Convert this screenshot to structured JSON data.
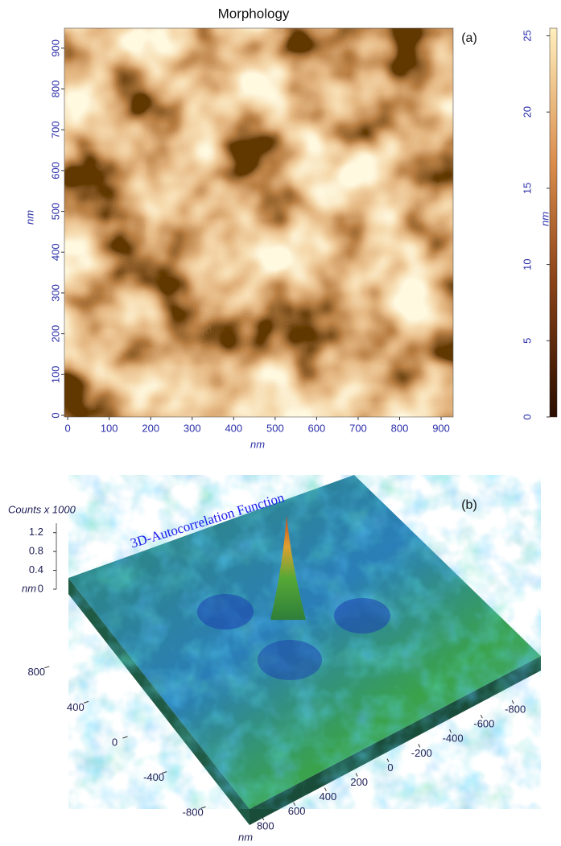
{
  "chart_data": [
    {
      "type": "heatmap",
      "title": "Morphology",
      "panel_label": "(a)",
      "x_label": "nm",
      "y_label": "nm",
      "xlim": [
        -8,
        929
      ],
      "ylim": [
        -4,
        949
      ],
      "xticks": [
        0,
        100,
        200,
        300,
        400,
        500,
        600,
        700,
        800,
        900
      ],
      "yticks": [
        0,
        100,
        200,
        300,
        400,
        500,
        600,
        700,
        800,
        900
      ],
      "colorbar": {
        "label": "nm",
        "lim": [
          0,
          25.5
        ],
        "ticks": [
          0,
          5,
          10,
          15,
          20,
          25
        ]
      }
    },
    {
      "type": "surface3d",
      "title": "3D-Autocorrelation Function",
      "panel_label": "(b)",
      "z_label": "Counts x 1000",
      "zlim": [
        0,
        1.4
      ],
      "zticks": [
        0,
        0.4,
        0.8,
        1.2
      ],
      "y_label": "nm",
      "ylim": [
        1000,
        -1000
      ],
      "yticks": [
        800,
        400,
        0,
        -400,
        -800
      ],
      "x_label": "nm",
      "xlim": [
        1000,
        -1000
      ],
      "xticks": [
        800,
        600,
        400,
        200,
        0,
        -200,
        -400,
        -600,
        -800
      ]
    }
  ]
}
